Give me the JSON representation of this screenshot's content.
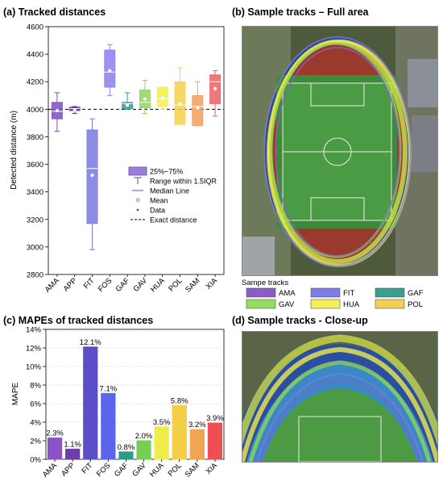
{
  "panel_a": {
    "title": "(a) Tracked distances",
    "chart_data": {
      "type": "box",
      "ylabel": "Detected distance (m)",
      "ylim": [
        2800,
        4600
      ],
      "yticks": [
        2800,
        3000,
        3200,
        3400,
        3600,
        3800,
        4000,
        4200,
        4400,
        4600
      ],
      "reference_line": {
        "value": 4000,
        "label": "Exact distance"
      },
      "categories": [
        "AMA",
        "APP",
        "FIT",
        "FOS",
        "GAF",
        "GAV",
        "HUA",
        "POL",
        "SAM",
        "XIA"
      ],
      "series": [
        {
          "name": "AMA",
          "color": "#7b4fbf",
          "q1": 3930,
          "median": 3985,
          "q3": 4050,
          "whisker_low": 3840,
          "whisker_high": 4120,
          "mean": 3990
        },
        {
          "name": "APP",
          "color": "#6a2fa8",
          "q1": 3990,
          "median": 4005,
          "q3": 4015,
          "whisker_low": 3970,
          "whisker_high": 4020,
          "mean": 3995
        },
        {
          "name": "FIT",
          "color": "#7a79e0",
          "q1": 3170,
          "median": 3570,
          "q3": 3850,
          "whisker_low": 2980,
          "whisker_high": 3930,
          "mean": 3520
        },
        {
          "name": "FOS",
          "color": "#8a7ff0",
          "q1": 4160,
          "median": 4270,
          "q3": 4430,
          "whisker_low": 4100,
          "whisker_high": 4470,
          "mean": 4280
        },
        {
          "name": "GAF",
          "color": "#2f9e8e",
          "q1": 4005,
          "median": 4040,
          "q3": 4050,
          "whisker_low": 4000,
          "whisker_high": 4120,
          "mean": 4030
        },
        {
          "name": "GAV",
          "color": "#8fd65a",
          "q1": 4010,
          "median": 4050,
          "q3": 4140,
          "whisker_low": 3970,
          "whisker_high": 4210,
          "mean": 4075
        },
        {
          "name": "HUA",
          "color": "#f2ee4a",
          "q1": 4020,
          "median": 4075,
          "q3": 4160,
          "whisker_low": 4000,
          "whisker_high": 4160,
          "mean": 4080
        },
        {
          "name": "POL",
          "color": "#f5d24a",
          "q1": 3890,
          "median": 4030,
          "q3": 4200,
          "whisker_low": 3890,
          "whisker_high": 4300,
          "mean": 4040
        },
        {
          "name": "SAM",
          "color": "#f0a05a",
          "q1": 3880,
          "median": 4020,
          "q3": 4100,
          "whisker_low": 3880,
          "whisker_high": 4200,
          "mean": 4010
        },
        {
          "name": "XIA",
          "color": "#ef5f62",
          "q1": 4040,
          "median": 4200,
          "q3": 4250,
          "whisker_low": 3950,
          "whisker_high": 4280,
          "mean": 4150
        }
      ],
      "legend": {
        "position": "bottom-right",
        "items": [
          "25%~75%",
          "Range within 1.5IQR",
          "Median Line",
          "Mean",
          "Data",
          "Exact distance"
        ]
      }
    }
  },
  "panel_b": {
    "title": "(b) Sample tracks – Full area",
    "legend_title": "Sampe tracks",
    "legend_items": [
      {
        "label": "AMA",
        "color": "#8b5cc9"
      },
      {
        "label": "FIT",
        "color": "#7e7ce6"
      },
      {
        "label": "GAF",
        "color": "#38a08e"
      },
      {
        "label": "GAV",
        "color": "#93dd5e"
      },
      {
        "label": "HUA",
        "color": "#f3ef55"
      },
      {
        "label": "POL",
        "color": "#f3d052"
      }
    ]
  },
  "panel_c": {
    "title": "(c) MAPEs of tracked distances",
    "chart_data": {
      "type": "bar",
      "ylabel": "MAPE",
      "ylim": [
        0,
        14
      ],
      "yticks": [
        "0%",
        "2%",
        "4%",
        "6%",
        "8%",
        "10%",
        "12%",
        "14%"
      ],
      "categories": [
        "AMA",
        "APP",
        "FIT",
        "FOS",
        "GAF",
        "GAV",
        "HUA",
        "POL",
        "SAM",
        "XIA"
      ],
      "values": [
        2.3,
        1.1,
        12.1,
        7.1,
        0.8,
        2.0,
        3.5,
        5.8,
        3.2,
        3.9
      ],
      "value_labels": [
        "2.3%",
        "1.1%",
        "12.1%",
        "7.1%",
        "0.8%",
        "2.0%",
        "3.5%",
        "5.8%",
        "3.2%",
        "3.9%"
      ],
      "colors": [
        "#8a53c8",
        "#6b3fa8",
        "#5a4fc8",
        "#5d64ee",
        "#2e9a88",
        "#75cf52",
        "#f0ec4a",
        "#f4cf45",
        "#f1a552",
        "#ee4f52"
      ],
      "grid": true
    }
  },
  "panel_d": {
    "title": "(d) Sample tracks - Close-up"
  }
}
